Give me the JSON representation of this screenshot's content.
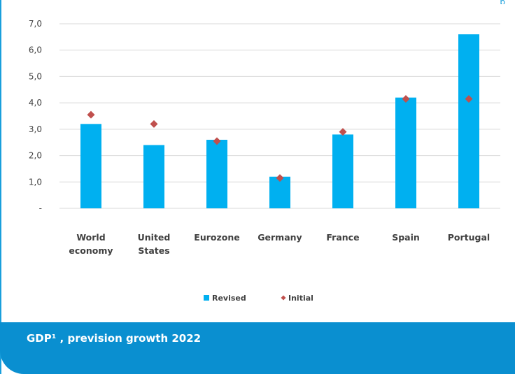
{
  "header": {
    "edge_text": "p"
  },
  "footer": {
    "title": "GDP¹ , prevision growth 2022"
  },
  "colors": {
    "bar": "#00b0f0",
    "marker": "#c0504d",
    "footer": "#0a8fd0",
    "frame": "#1a9fdc"
  },
  "chart_data": {
    "type": "bar",
    "categories": [
      [
        "World",
        "economy"
      ],
      [
        "United",
        "States"
      ],
      [
        "Eurozone"
      ],
      [
        "Germany"
      ],
      [
        "France"
      ],
      [
        "Spain"
      ],
      [
        "Portugal"
      ]
    ],
    "series": [
      {
        "name": "Revised",
        "kind": "bar",
        "values": [
          3.2,
          2.4,
          2.6,
          1.2,
          2.8,
          4.2,
          6.6
        ]
      },
      {
        "name": "Initial",
        "kind": "marker",
        "values": [
          3.55,
          3.2,
          2.55,
          1.15,
          2.9,
          4.15,
          4.15
        ]
      }
    ],
    "ylim": [
      0,
      7
    ],
    "yticks": [
      {
        "value": 0,
        "label": "-"
      },
      {
        "value": 1,
        "label": "1,0"
      },
      {
        "value": 2,
        "label": "2,0"
      },
      {
        "value": 3,
        "label": "3,0"
      },
      {
        "value": 4,
        "label": "4,0"
      },
      {
        "value": 5,
        "label": "5,0"
      },
      {
        "value": 6,
        "label": "6,0"
      },
      {
        "value": 7,
        "label": "7,0"
      }
    ],
    "grid": true,
    "legend": "bottom-center"
  }
}
